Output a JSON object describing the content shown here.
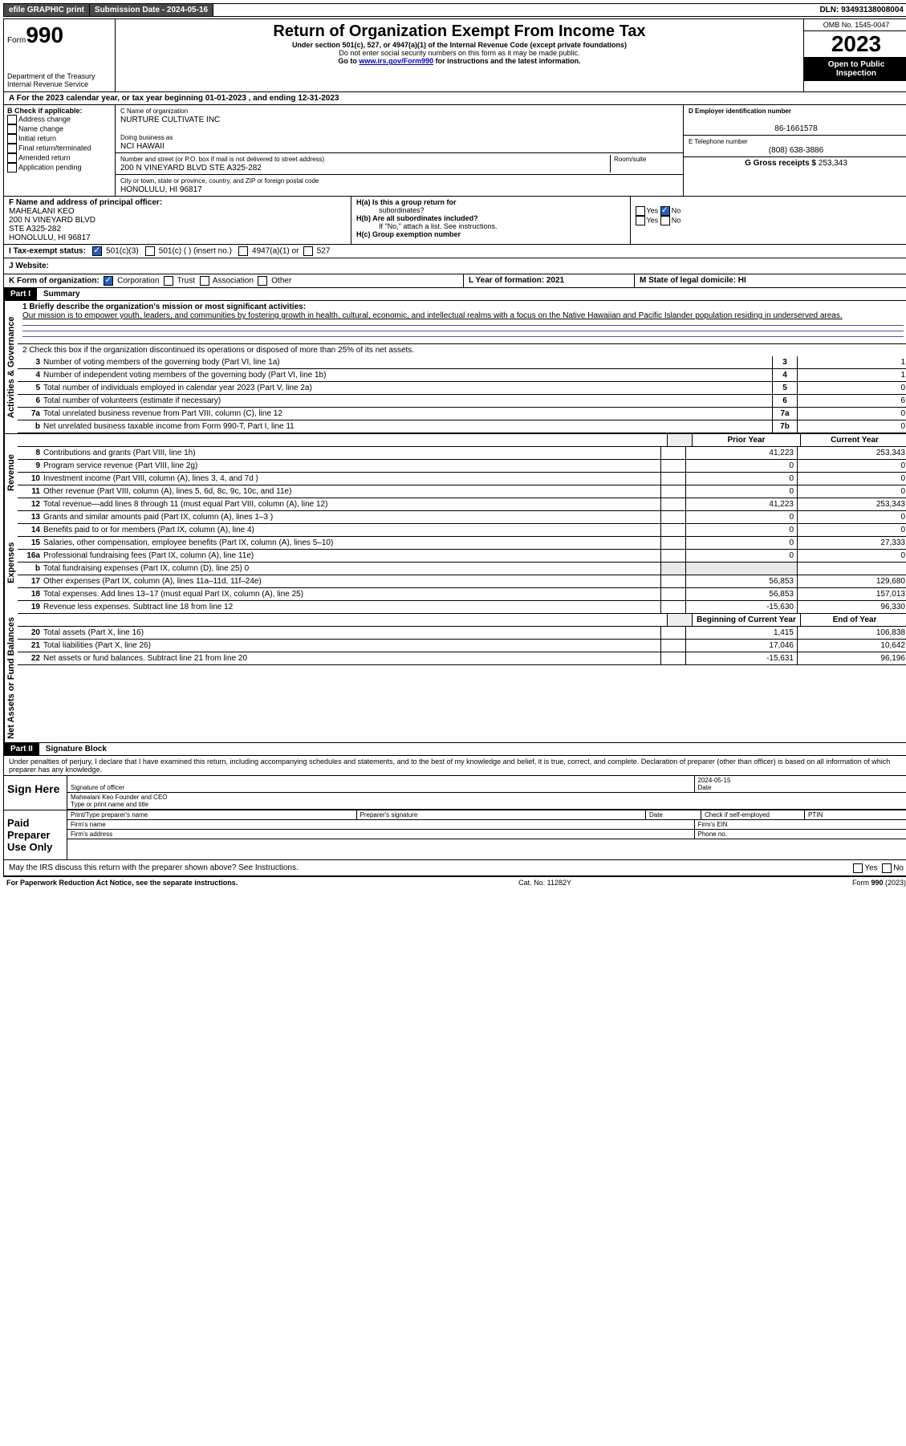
{
  "topbar": {
    "efile": "efile GRAPHIC print",
    "sub_label": "Submission Date - ",
    "sub_date": "2024-05-16",
    "dln_label": "DLN: ",
    "dln": "93493138008004"
  },
  "header": {
    "form_word": "Form",
    "form_num": "990",
    "dept": "Department of the Treasury",
    "irs": "Internal Revenue Service",
    "title": "Return of Organization Exempt From Income Tax",
    "sub1": "Under section 501(c), 527, or 4947(a)(1) of the Internal Revenue Code (except private foundations)",
    "sub2": "Do not enter social security numbers on this form as it may be made public.",
    "sub3_pre": "Go to ",
    "sub3_link": "www.irs.gov/Form990",
    "sub3_post": " for instructions and the latest information.",
    "omb": "OMB No. 1545-0047",
    "year": "2023",
    "inspect": "Open to Public Inspection"
  },
  "row_a": "A For the 2023 calendar year, or tax year beginning 01-01-2023   , and ending 12-31-2023",
  "col_b": {
    "hdr": "B Check if applicable:",
    "items": [
      "Address change",
      "Name change",
      "Initial return",
      "Final return/terminated",
      "Amended return",
      "Application pending"
    ]
  },
  "col_c": {
    "name_lbl": "C Name of organization",
    "name": "NURTURE CULTIVATE INC",
    "dba_lbl": "Doing business as",
    "dba": "NCI HAWAII",
    "street_lbl": "Number and street (or P.O. box if mail is not delivered to street address)",
    "room_lbl": "Room/suite",
    "street": "200 N VINEYARD BLVD STE A325-282",
    "city_lbl": "City or town, state or province, country, and ZIP or foreign postal code",
    "city": "HONOLULU, HI  96817"
  },
  "col_d": {
    "ein_lbl": "D Employer identification number",
    "ein": "86-1661578",
    "tel_lbl": "E Telephone number",
    "tel": "(808) 638-3886",
    "gross_lbl": "G Gross receipts $ ",
    "gross": "253,343"
  },
  "row_f": {
    "lbl": "F  Name and address of principal officer:",
    "name": "MAHEALANI KEO",
    "l1": "200 N VINEYARD BLVD",
    "l2": "STE A325-282",
    "l3": "HONOLULU, HI  96817"
  },
  "row_h": {
    "ha": "H(a)  Is this a group return for",
    "ha2": "subordinates?",
    "hb": "H(b)  Are all subordinates included?",
    "hb2": "If \"No,\" attach a list. See instructions.",
    "hc": "H(c)  Group exemption number",
    "yes": "Yes",
    "no": "No"
  },
  "row_i": {
    "lbl": "I   Tax-exempt status:",
    "o1": "501(c)(3)",
    "o2": "501(c) (  ) (insert no.)",
    "o3": "4947(a)(1) or",
    "o4": "527"
  },
  "row_j": "J   Website:",
  "row_k": {
    "lbl": "K Form of organization:",
    "o1": "Corporation",
    "o2": "Trust",
    "o3": "Association",
    "o4": "Other"
  },
  "row_l": "L Year of formation: 2021",
  "row_m": "M State of legal domicile: HI",
  "part1": {
    "tag": "Part I",
    "title": "Summary"
  },
  "mission_lbl": "1   Briefly describe the organization's mission or most significant activities:",
  "mission": "Our mission is to empower youth, leaders, and communities by fostering growth in health, cultural, economic, and intellectual realms with a focus on the Native Hawaiian and Pacific Islander population residing in underserved areas.",
  "line2": "2   Check this box      if the organization discontinued its operations or disposed of more than 25% of its net assets.",
  "vert": {
    "ag": "Activities & Governance",
    "rev": "Revenue",
    "exp": "Expenses",
    "net": "Net Assets or Fund Balances"
  },
  "gov_lines": [
    {
      "n": "3",
      "t": "Number of voting members of the governing body (Part VI, line 1a)",
      "b": "3",
      "v": "1"
    },
    {
      "n": "4",
      "t": "Number of independent voting members of the governing body (Part VI, line 1b)",
      "b": "4",
      "v": "1"
    },
    {
      "n": "5",
      "t": "Total number of individuals employed in calendar year 2023 (Part V, line 2a)",
      "b": "5",
      "v": "0"
    },
    {
      "n": "6",
      "t": "Total number of volunteers (estimate if necessary)",
      "b": "6",
      "v": "6"
    },
    {
      "n": "7a",
      "t": "Total unrelated business revenue from Part VIII, column (C), line 12",
      "b": "7a",
      "v": "0"
    },
    {
      "n": "b",
      "t": "Net unrelated business taxable income from Form 990-T, Part I, line 11",
      "b": "7b",
      "v": "0"
    }
  ],
  "hdr2": {
    "py": "Prior Year",
    "cy": "Current Year"
  },
  "rev_lines": [
    {
      "n": "8",
      "t": "Contributions and grants (Part VIII, line 1h)",
      "py": "41,223",
      "cy": "253,343"
    },
    {
      "n": "9",
      "t": "Program service revenue (Part VIII, line 2g)",
      "py": "0",
      "cy": "0"
    },
    {
      "n": "10",
      "t": "Investment income (Part VIII, column (A), lines 3, 4, and 7d )",
      "py": "0",
      "cy": "0"
    },
    {
      "n": "11",
      "t": "Other revenue (Part VIII, column (A), lines 5, 6d, 8c, 9c, 10c, and 11e)",
      "py": "0",
      "cy": "0"
    },
    {
      "n": "12",
      "t": "Total revenue—add lines 8 through 11 (must equal Part VIII, column (A), line 12)",
      "py": "41,223",
      "cy": "253,343"
    }
  ],
  "exp_lines": [
    {
      "n": "13",
      "t": "Grants and similar amounts paid (Part IX, column (A), lines 1–3 )",
      "py": "0",
      "cy": "0"
    },
    {
      "n": "14",
      "t": "Benefits paid to or for members (Part IX, column (A), line 4)",
      "py": "0",
      "cy": "0"
    },
    {
      "n": "15",
      "t": "Salaries, other compensation, employee benefits (Part IX, column (A), lines 5–10)",
      "py": "0",
      "cy": "27,333"
    },
    {
      "n": "16a",
      "t": "Professional fundraising fees (Part IX, column (A), line 11e)",
      "py": "0",
      "cy": "0"
    },
    {
      "n": "b",
      "t": "Total fundraising expenses (Part IX, column (D), line 25) 0",
      "py": "",
      "cy": "",
      "shade": true
    },
    {
      "n": "17",
      "t": "Other expenses (Part IX, column (A), lines 11a–11d, 11f–24e)",
      "py": "56,853",
      "cy": "129,680"
    },
    {
      "n": "18",
      "t": "Total expenses. Add lines 13–17 (must equal Part IX, column (A), line 25)",
      "py": "56,853",
      "cy": "157,013"
    },
    {
      "n": "19",
      "t": "Revenue less expenses. Subtract line 18 from line 12",
      "py": "-15,630",
      "cy": "96,330"
    }
  ],
  "hdr3": {
    "bcy": "Beginning of Current Year",
    "eoy": "End of Year"
  },
  "net_lines": [
    {
      "n": "20",
      "t": "Total assets (Part X, line 16)",
      "py": "1,415",
      "cy": "106,838"
    },
    {
      "n": "21",
      "t": "Total liabilities (Part X, line 26)",
      "py": "17,046",
      "cy": "10,642"
    },
    {
      "n": "22",
      "t": "Net assets or fund balances. Subtract line 21 from line 20",
      "py": "-15,631",
      "cy": "96,196"
    }
  ],
  "part2": {
    "tag": "Part II",
    "title": "Signature Block"
  },
  "perjury": "Under penalties of perjury, I declare that I have examined this return, including accompanying schedules and statements, and to the best of my knowledge and belief, it is true, correct, and complete. Declaration of preparer (other than officer) is based on all information of which preparer has any knowledge.",
  "sign": {
    "here": "Sign Here",
    "sig_lbl": "Signature of officer",
    "date": "2024-05-15",
    "date_lbl": "Date",
    "name": "Mahealani Keo Founder and CEO",
    "name_lbl": "Type or print name and title"
  },
  "paid": {
    "lbl": "Paid Preparer Use Only",
    "c1": "Print/Type preparer's name",
    "c2": "Preparer's signature",
    "c3": "Date",
    "c4": "Check       if self-employed",
    "c5": "PTIN",
    "firm": "Firm's name",
    "ein": "Firm's EIN",
    "addr": "Firm's address",
    "phone": "Phone no."
  },
  "discuss": "May the IRS discuss this return with the preparer shown above? See Instructions.",
  "footer": {
    "l": "For Paperwork Reduction Act Notice, see the separate instructions.",
    "m": "Cat. No. 11282Y",
    "r": "Form 990 (2023)"
  }
}
